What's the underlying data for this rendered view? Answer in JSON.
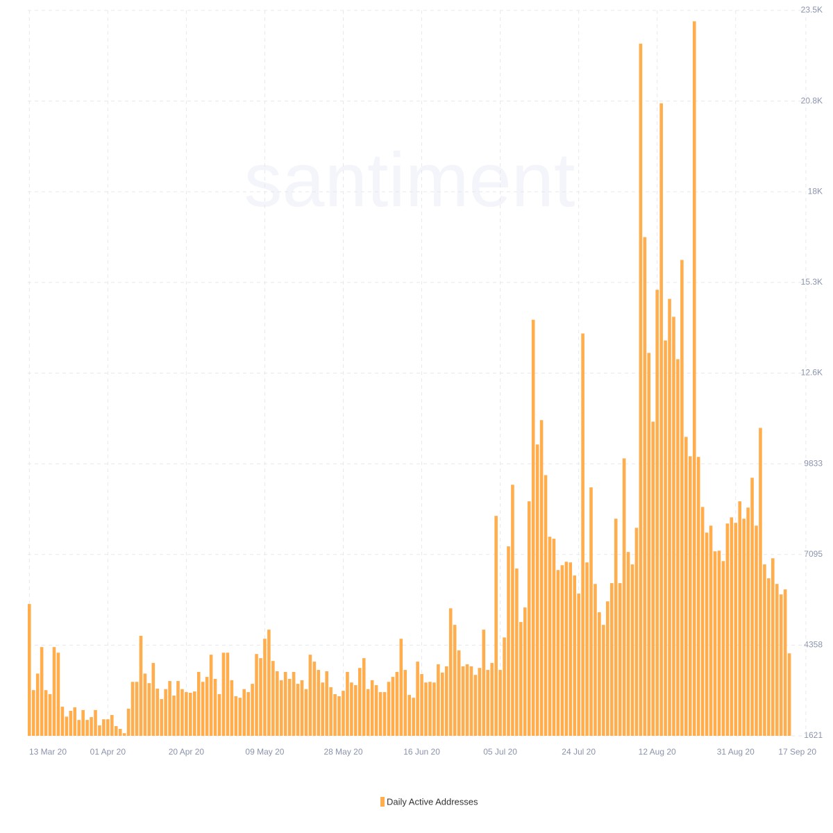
{
  "chart_data": {
    "type": "bar",
    "watermark": "santiment",
    "categories": [
      "13 Mar 20",
      null,
      null,
      null,
      null,
      null,
      null,
      null,
      null,
      null,
      null,
      null,
      null,
      null,
      null,
      null,
      null,
      null,
      null,
      "01 Apr 20",
      null,
      null,
      null,
      null,
      null,
      null,
      null,
      null,
      null,
      null,
      null,
      null,
      null,
      null,
      null,
      null,
      null,
      null,
      "20 Apr 20",
      null,
      null,
      null,
      null,
      null,
      null,
      null,
      null,
      null,
      null,
      null,
      null,
      null,
      null,
      null,
      null,
      null,
      null,
      "09 May 20",
      null,
      null,
      null,
      null,
      null,
      null,
      null,
      null,
      null,
      null,
      null,
      null,
      null,
      null,
      null,
      null,
      null,
      null,
      "28 May 20",
      null,
      null,
      null,
      null,
      null,
      null,
      null,
      null,
      null,
      null,
      null,
      null,
      null,
      null,
      null,
      null,
      null,
      null,
      "16 Jun 20",
      null,
      null,
      null,
      null,
      null,
      null,
      null,
      null,
      null,
      null,
      null,
      null,
      null,
      null,
      null,
      null,
      null,
      null,
      "05 Jul 20",
      null,
      null,
      null,
      null,
      null,
      null,
      null,
      null,
      null,
      null,
      null,
      null,
      null,
      null,
      null,
      null,
      null,
      null,
      "24 Jul 20",
      null,
      null,
      null,
      null,
      null,
      null,
      null,
      null,
      null,
      null,
      null,
      null,
      null,
      null,
      null,
      null,
      null,
      null,
      "12 Aug 20",
      null,
      null,
      null,
      null,
      null,
      null,
      null,
      null,
      null,
      null,
      null,
      null,
      null,
      null,
      null,
      null,
      null,
      null,
      "31 Aug 20",
      null,
      null,
      null,
      null,
      null,
      null,
      null,
      null,
      null,
      null,
      null,
      null,
      null,
      null,
      null,
      null,
      "17 Sep 20"
    ],
    "series": [
      {
        "name": "Daily Active Addresses",
        "color": "#ffad4d",
        "values": [
          5600,
          3000,
          3500,
          4300,
          3000,
          2880,
          4300,
          4130,
          2500,
          2200,
          2375,
          2480,
          2100,
          2400,
          2100,
          2185,
          2400,
          1935,
          2120,
          2120,
          2250,
          1915,
          1830,
          1700,
          2440,
          3250,
          3250,
          4640,
          3500,
          3210,
          3820,
          3045,
          2730,
          3030,
          3275,
          2835,
          3275,
          3030,
          2940,
          2920,
          2960,
          3550,
          3250,
          3400,
          4070,
          3340,
          2880,
          4130,
          4130,
          3300,
          2815,
          2770,
          3030,
          2940,
          3190,
          4090,
          3965,
          4550,
          4825,
          3880,
          3570,
          3300,
          3550,
          3340,
          3550,
          3190,
          3300,
          3030,
          4070,
          3860,
          3610,
          3230,
          3570,
          3090,
          2880,
          2815,
          2980,
          3550,
          3230,
          3150,
          3670,
          3965,
          3030,
          3300,
          3150,
          2940,
          2940,
          3250,
          3400,
          3550,
          4550,
          3610,
          2855,
          2770,
          3860,
          3485,
          3230,
          3250,
          3230,
          3780,
          3530,
          3720,
          5470,
          4970,
          4200,
          3720,
          3780,
          3720,
          3460,
          3670,
          4825,
          3610,
          3820,
          8260,
          3610,
          4590,
          7340,
          9200,
          6670,
          5055,
          5495,
          8700,
          14180,
          10415,
          11150,
          9490,
          7630,
          7570,
          6625,
          6770,
          6875,
          6855,
          6460,
          5915,
          13765,
          6855,
          9120,
          6205,
          5350,
          4970,
          5680,
          6230,
          8175,
          6230,
          9995,
          7170,
          6795,
          7900,
          22515,
          16675,
          13180,
          11105,
          15085,
          20715,
          13555,
          14810,
          14270,
          12990,
          15985,
          10645,
          10060,
          23190,
          10040,
          8530,
          7755,
          7965,
          7190,
          7210,
          6895,
          8030,
          8215,
          8050,
          8700,
          8175,
          8510,
          9410,
          7965,
          10915,
          6795,
          6375,
          6980,
          6205,
          5890,
          6040,
          4110,
          null,
          null,
          null,
          null
        ]
      }
    ],
    "ylim": [
      1621,
      23518
    ],
    "yticks": [
      1621,
      4358,
      7095,
      9833,
      {
        "value": 12570,
        "label": "12.6K"
      },
      {
        "value": 15307,
        "label": "15.3K"
      },
      {
        "value": 18044,
        "label": "18K"
      },
      {
        "value": 20781,
        "label": "20.8K"
      },
      {
        "value": 23518,
        "label": "23.5K"
      }
    ],
    "grid": true,
    "legend": "bottom"
  }
}
